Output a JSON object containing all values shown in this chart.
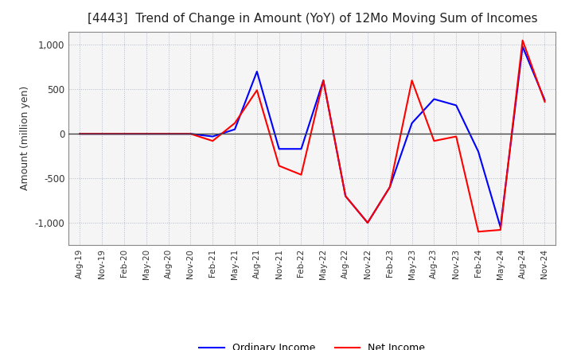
{
  "title": "[4443]  Trend of Change in Amount (YoY) of 12Mo Moving Sum of Incomes",
  "ylabel": "Amount (million yen)",
  "ylim": [
    -1250,
    1150
  ],
  "yticks": [
    -1000,
    -500,
    0,
    500,
    1000
  ],
  "legend_labels": [
    "Ordinary Income",
    "Net Income"
  ],
  "line_colors": [
    "#0000ff",
    "#ff0000"
  ],
  "x_labels": [
    "Aug-19",
    "Nov-19",
    "Feb-20",
    "May-20",
    "Aug-20",
    "Nov-20",
    "Feb-21",
    "May-21",
    "Aug-21",
    "Nov-21",
    "Feb-22",
    "May-22",
    "Aug-22",
    "Nov-22",
    "Feb-23",
    "May-23",
    "Aug-23",
    "Nov-23",
    "Feb-24",
    "May-24",
    "Aug-24",
    "Nov-24"
  ],
  "ordinary_income": [
    0,
    0,
    0,
    0,
    0,
    0,
    -30,
    50,
    700,
    -170,
    -170,
    600,
    -700,
    -1000,
    -600,
    120,
    390,
    320,
    -200,
    -1050,
    980,
    380
  ],
  "net_income": [
    0,
    0,
    0,
    0,
    0,
    0,
    -80,
    120,
    490,
    -360,
    -460,
    600,
    -700,
    -1000,
    -600,
    600,
    -80,
    -30,
    -1100,
    -1080,
    1050,
    360
  ],
  "background_color": "#ffffff",
  "plot_bg_color": "#f5f5f5",
  "grid_color": "#b0b8c8"
}
